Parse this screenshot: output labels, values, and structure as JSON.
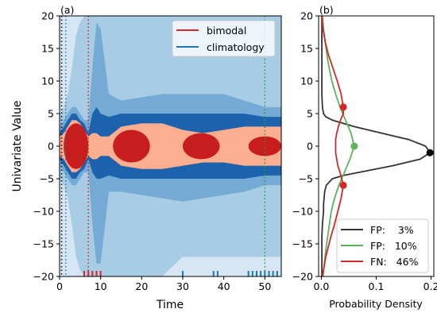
{
  "chart_data": [
    {
      "type": "area",
      "panel_label": "(a)",
      "xlabel": "Time",
      "ylabel": "Univariate Value",
      "xlim": [
        0,
        54
      ],
      "ylim": [
        -20,
        20
      ],
      "x_ticks": [
        0,
        10,
        20,
        30,
        40,
        50
      ],
      "y_ticks": [
        -20,
        -15,
        -10,
        -5,
        0,
        5,
        10,
        15,
        20
      ],
      "legend": [
        {
          "name": "bimodal",
          "color": "#d62728"
        },
        {
          "name": "climatology",
          "color": "#1f77b4"
        }
      ],
      "climatology_bands": [
        {
          "color": "#d6e6f5",
          "x": [
            0,
            54
          ],
          "lower": [
            -20,
            -20
          ],
          "upper": [
            20,
            20
          ]
        },
        {
          "color": "#a9cce5",
          "x": [
            0,
            1,
            2,
            3,
            4,
            5,
            6,
            7,
            8,
            9,
            10,
            12,
            15,
            20,
            25,
            30,
            35,
            40,
            45,
            50,
            54
          ],
          "upper": [
            5,
            6,
            8,
            12,
            17,
            19,
            20,
            20,
            20,
            20,
            20,
            20,
            20,
            20,
            20,
            20,
            20,
            20,
            20,
            20,
            20
          ],
          "lower": [
            -5,
            -6,
            -8,
            -12,
            -17,
            -19,
            -20,
            -20,
            -20,
            -20,
            -20,
            -20,
            -20,
            -20,
            -20,
            -17,
            -17,
            -17,
            -17,
            -17,
            -17
          ]
        },
        {
          "color": "#74aad4",
          "x": [
            0,
            1,
            2,
            3,
            4,
            5,
            6,
            7,
            8,
            9,
            10,
            12,
            15,
            20,
            25,
            30,
            35,
            40,
            45,
            50,
            54
          ],
          "upper": [
            3,
            4,
            5,
            6,
            6,
            5,
            4,
            4,
            12,
            19,
            18,
            8,
            7,
            7.5,
            8,
            8,
            8,
            8,
            7,
            6,
            6
          ],
          "lower": [
            -3,
            -4,
            -5,
            -6,
            -6,
            -5,
            -4,
            -4,
            -12,
            -18,
            -18,
            -7,
            -7,
            -7.5,
            -8,
            -8.5,
            -8,
            -7.5,
            -7,
            -6,
            -6
          ]
        },
        {
          "color": "#1c62ac",
          "x": [
            0,
            1,
            2,
            3,
            4,
            5,
            6,
            7,
            8,
            9,
            10,
            12,
            15,
            20,
            25,
            30,
            35,
            40,
            45,
            50,
            54
          ],
          "upper": [
            2,
            3,
            4,
            5,
            5,
            4,
            3.5,
            2,
            5,
            6,
            5,
            4.5,
            5,
            5,
            5,
            5,
            5,
            5,
            5,
            4.5,
            4.5
          ],
          "lower": [
            -2,
            -3,
            -4,
            -5,
            -5,
            -4,
            -3.5,
            -2,
            -4,
            -5,
            -5,
            -4.5,
            -5,
            -5,
            -5,
            -5,
            -5,
            -5,
            -5,
            -4.5,
            -4.5
          ]
        }
      ],
      "bimodal_bands": [
        {
          "color": "#fcae91",
          "x": [
            0,
            1,
            2,
            3,
            4,
            5,
            6,
            7,
            8,
            9,
            10,
            12,
            15,
            20,
            25,
            30,
            35,
            40,
            45,
            50,
            54
          ],
          "upper": [
            1.5,
            2,
            3,
            4,
            4,
            3.5,
            2.5,
            1.5,
            2,
            2,
            1.5,
            1.5,
            3,
            3.5,
            3.5,
            2.5,
            2,
            2.5,
            3,
            3,
            3
          ],
          "lower": [
            -1.5,
            -2,
            -3,
            -4,
            -4,
            -3.5,
            -2.5,
            -1.5,
            -2,
            -2,
            -1.5,
            -1.5,
            -3,
            -3.5,
            -3.5,
            -3,
            -2.5,
            -2.5,
            -3,
            -3,
            -3
          ]
        }
      ],
      "bimodal_blobs": [
        {
          "x": [
            1,
            7
          ],
          "y_range": [
            -3.5,
            3.5
          ]
        },
        {
          "x": [
            13,
            22
          ],
          "y_range": [
            -2.5,
            2.5
          ]
        },
        {
          "x": [
            30,
            39
          ],
          "y_range": [
            -2,
            2
          ]
        },
        {
          "x": [
            46,
            54
          ],
          "y_range": [
            -1.5,
            1.5
          ]
        }
      ],
      "vertical_lines": [
        {
          "x": 0.5,
          "color": "#000000",
          "style": "dotted"
        },
        {
          "x": 1.5,
          "color": "#1f77b4",
          "style": "dotted"
        },
        {
          "x": 7,
          "color": "#d62728",
          "style": "dotted"
        },
        {
          "x": 50,
          "color": "#2ca02c",
          "style": "dotted"
        }
      ],
      "rug_red": [
        6,
        7,
        8,
        9,
        10
      ],
      "rug_blue": [
        30,
        37.5,
        38.5,
        46,
        47,
        48,
        49,
        50,
        51,
        52,
        53
      ]
    },
    {
      "type": "line",
      "panel_label": "(b)",
      "xlabel": "Probability Density",
      "xlim": [
        -0.005,
        0.205
      ],
      "ylim": [
        -20,
        20
      ],
      "x_ticks": [
        0.0,
        0.1,
        0.2
      ],
      "x_tick_labels": [
        "0.0",
        "0.1",
        "0.2"
      ],
      "y_ticks": [
        -20,
        -15,
        -10,
        -5,
        0,
        5,
        10,
        15,
        20
      ],
      "series": [
        {
          "name": "FP:    3%",
          "color": "#333333",
          "marker": "black",
          "marker_points": [
            [
              0.198,
              -1
            ]
          ],
          "y": [
            -20,
            -18,
            -16,
            -14,
            -12,
            -10,
            -9,
            -8,
            -7,
            -6,
            -5,
            -4.5,
            -4,
            -3,
            -2,
            -1,
            0,
            1,
            2,
            3,
            4,
            4.5,
            5,
            6,
            8,
            12,
            16,
            20
          ],
          "x": [
            0.001,
            0.001,
            0.001,
            0.001,
            0.002,
            0.004,
            0.004,
            0.005,
            0.006,
            0.009,
            0.02,
            0.04,
            0.07,
            0.13,
            0.18,
            0.198,
            0.19,
            0.16,
            0.11,
            0.06,
            0.02,
            0.008,
            0.004,
            0.002,
            0.001,
            0.001,
            0.001,
            0.001
          ]
        },
        {
          "name": "FP:   10%",
          "color": "#5bb35b",
          "marker": "#5bb35b",
          "marker_points": [
            [
              0.06,
              0
            ]
          ],
          "y": [
            -20,
            -16,
            -13,
            -10,
            -8,
            -6,
            -4,
            -2,
            0,
            2,
            4,
            6,
            8,
            10,
            13,
            16,
            18,
            20
          ],
          "x": [
            0.003,
            0.008,
            0.013,
            0.018,
            0.024,
            0.032,
            0.042,
            0.052,
            0.06,
            0.054,
            0.044,
            0.034,
            0.026,
            0.019,
            0.012,
            0.007,
            0.004,
            0.002
          ]
        },
        {
          "name": "FN:   46%",
          "color": "#d62728",
          "marker": "#d62728",
          "marker_points": [
            [
              0.04,
              -6
            ],
            [
              0.04,
              6
            ]
          ],
          "y": [
            -20,
            -17,
            -14,
            -12,
            -10,
            -8,
            -6,
            -5,
            -4,
            -3,
            -2,
            -1,
            0,
            1,
            2,
            3,
            4,
            5,
            6,
            8,
            10,
            12,
            14,
            16,
            18,
            20
          ],
          "x": [
            0.002,
            0.008,
            0.017,
            0.024,
            0.03,
            0.036,
            0.04,
            0.037,
            0.034,
            0.03,
            0.028,
            0.026,
            0.026,
            0.026,
            0.028,
            0.031,
            0.035,
            0.04,
            0.04,
            0.036,
            0.029,
            0.021,
            0.013,
            0.007,
            0.003,
            0.001
          ]
        }
      ],
      "legend_position": "lower-right"
    }
  ]
}
